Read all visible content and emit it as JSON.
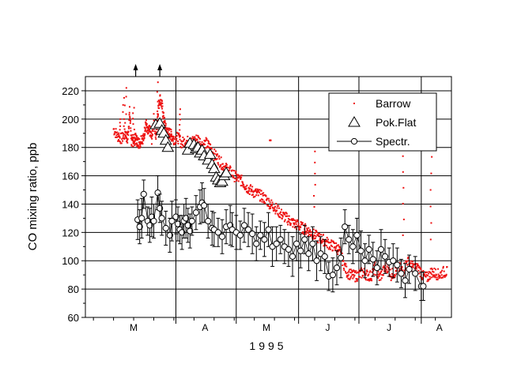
{
  "chart_data": {
    "type": "scatter",
    "xlabel": "1995",
    "ylabel": "CO mixing ratio, ppb",
    "ylim": [
      60,
      230
    ],
    "y_ticks": [
      60,
      80,
      100,
      120,
      140,
      160,
      180,
      200,
      220
    ],
    "x_range_day_of_year": [
      46,
      228
    ],
    "month_labels": [
      "M",
      "A",
      "M",
      "J",
      "J",
      "A"
    ],
    "grid": true,
    "legend_position": "top-right",
    "legend": [
      {
        "label": "Barrow",
        "marker": "dot",
        "color": "#ee1111"
      },
      {
        "label": "Pok.Flat",
        "marker": "open-triangle",
        "color": "#000000"
      },
      {
        "label": "Spectr.",
        "marker": "open-circle-line",
        "color": "#000000"
      }
    ],
    "annotations": [
      {
        "type": "off-scale-arrow",
        "x_day": 71
      },
      {
        "type": "off-scale-arrow",
        "x_day": 83
      }
    ],
    "series": [
      {
        "name": "Barrow",
        "style": "dots",
        "x_day": [
          60,
          62,
          64,
          66,
          67,
          68,
          69,
          70,
          71,
          72,
          73,
          74,
          75,
          76,
          77,
          78,
          79,
          80,
          81,
          82,
          83,
          84,
          85,
          86,
          87,
          88,
          89,
          90,
          92,
          94,
          96,
          98,
          100,
          102,
          104,
          106,
          108,
          110,
          112,
          114,
          116,
          118,
          120,
          122,
          124,
          126,
          128,
          130,
          132,
          134,
          136,
          138,
          140,
          142,
          144,
          146,
          148,
          150,
          152,
          154,
          156,
          158,
          160,
          162,
          164,
          166,
          168,
          170,
          172,
          174,
          176,
          178,
          180,
          182,
          184,
          186,
          188,
          190,
          192,
          194,
          196,
          198,
          200,
          202,
          204,
          206,
          208,
          210,
          212,
          214,
          216,
          218,
          220,
          222,
          224,
          226
        ],
        "co_ppb": [
          193,
          188,
          186,
          190,
          185,
          205,
          183,
          185,
          186,
          184,
          183,
          187,
          186,
          198,
          190,
          192,
          186,
          200,
          187,
          205,
          215,
          210,
          200,
          193,
          190,
          190,
          188,
          186,
          187,
          183,
          185,
          183,
          185,
          186,
          182,
          183,
          180,
          175,
          172,
          168,
          165,
          163,
          160,
          158,
          156,
          152,
          150,
          148,
          147,
          145,
          143,
          140,
          138,
          135,
          132,
          130,
          128,
          126,
          125,
          123,
          122,
          120,
          118,
          116,
          115,
          113,
          111,
          110,
          108,
          100,
          92,
          90,
          89,
          90,
          92,
          90,
          89,
          95,
          88,
          92,
          96,
          90,
          92,
          95,
          93,
          100,
          96,
          95,
          94,
          89,
          88,
          92,
          91,
          90,
          92,
          92
        ],
        "spikes": [
          [
            63,
            200
          ],
          [
            65,
            215
          ],
          [
            66,
            222
          ],
          [
            70,
            208
          ],
          [
            82,
            226
          ],
          [
            93,
            207
          ],
          [
            138,
            185
          ],
          [
            160,
            138
          ],
          [
            204,
            118
          ],
          [
            218,
            115
          ]
        ]
      },
      {
        "name": "Pok.Flat",
        "style": "open-triangle",
        "x_day": [
          81,
          83,
          84,
          85,
          86,
          87,
          97,
          98,
          100,
          101,
          102,
          103,
          104,
          105,
          107,
          108,
          109,
          110,
          111,
          112,
          113,
          114,
          115,
          116
        ],
        "co_ppb": [
          196,
          197,
          192,
          190,
          185,
          180,
          178,
          183,
          182,
          179,
          180,
          176,
          178,
          174,
          171,
          175,
          168,
          165,
          159,
          157,
          155,
          156,
          160,
          162
        ]
      },
      {
        "name": "Spectr.",
        "style": "open-circle-line",
        "x_day": [
          72,
          73,
          74,
          75,
          77,
          78,
          79,
          80,
          82,
          83,
          84,
          86,
          88,
          89,
          91,
          92,
          93,
          94,
          95,
          96,
          97,
          98,
          99,
          101,
          103,
          104,
          105,
          107,
          109,
          110,
          112,
          114,
          116,
          118,
          119,
          121,
          123,
          125,
          127,
          129,
          131,
          133,
          135,
          137,
          139,
          141,
          143,
          145,
          147,
          149,
          151,
          153,
          155,
          157,
          159,
          161,
          163,
          165,
          167,
          169,
          171,
          173,
          175,
          177,
          179,
          181,
          183,
          185,
          187,
          189,
          191,
          193,
          195,
          197,
          199,
          201,
          203,
          205,
          207,
          210,
          213,
          214
        ],
        "co_ppb": [
          129,
          124,
          130,
          147,
          128,
          125,
          131,
          128,
          148,
          137,
          130,
          123,
          118,
          128,
          131,
          126,
          122,
          120,
          128,
          130,
          125,
          121,
          128,
          134,
          138,
          141,
          139,
          128,
          123,
          122,
          120,
          117,
          124,
          125,
          122,
          120,
          118,
          125,
          122,
          119,
          112,
          118,
          115,
          122,
          110,
          112,
          115,
          110,
          108,
          103,
          112,
          107,
          115,
          105,
          112,
          100,
          105,
          103,
          89,
          90,
          95,
          102,
          124,
          115,
          110,
          118,
          107,
          100,
          108,
          101,
          95,
          108,
          103,
          99,
          100,
          97,
          91,
          86,
          94,
          91,
          82,
          82
        ],
        "error_ppb": [
          14,
          12,
          14,
          10,
          10,
          12,
          14,
          12,
          12,
          10,
          12,
          12,
          12,
          14,
          12,
          12,
          10,
          12,
          12,
          14,
          12,
          12,
          10,
          12,
          12,
          14,
          12,
          12,
          12,
          12,
          10,
          12,
          12,
          14,
          12,
          12,
          10,
          12,
          12,
          14,
          12,
          10,
          12,
          12,
          14,
          12,
          10,
          12,
          12,
          14,
          12,
          12,
          10,
          12,
          12,
          14,
          12,
          12,
          10,
          12,
          12,
          14,
          12,
          10,
          12,
          12,
          14,
          12,
          10,
          12,
          12,
          14,
          12,
          10,
          12,
          12,
          10,
          12,
          10,
          12,
          10,
          10
        ]
      }
    ]
  }
}
